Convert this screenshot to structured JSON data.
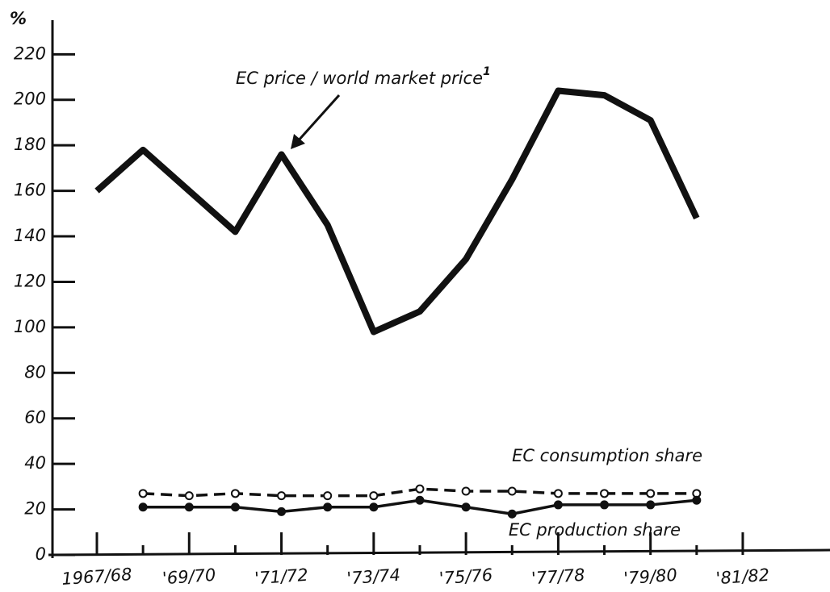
{
  "chart_data": {
    "type": "line",
    "y_label": "%",
    "footnote_marker": "1",
    "categories": [
      "1967/68",
      null,
      "'69/70",
      null,
      "'71/72",
      null,
      "'73/74",
      null,
      "'75/76",
      null,
      "'77/78",
      null,
      "'79/80",
      null,
      "'81/82"
    ],
    "series": [
      {
        "name": "EC price / world market price",
        "color": "#111111",
        "style": "solid-thick",
        "values": [
          160,
          178,
          160,
          142,
          176,
          145,
          98,
          107,
          130,
          165,
          204,
          202,
          191,
          148,
          null
        ]
      },
      {
        "name": "EC consumption share",
        "color": "#111111",
        "style": "dashed-open",
        "values": [
          null,
          27,
          26,
          27,
          26,
          26,
          26,
          29,
          28,
          28,
          27,
          27,
          27,
          27,
          null
        ]
      },
      {
        "name": "EC production share",
        "color": "#111111",
        "style": "solid-filled",
        "values": [
          null,
          21,
          21,
          21,
          19,
          21,
          21,
          24,
          21,
          18,
          22,
          22,
          22,
          24,
          null
        ]
      }
    ],
    "ylim": [
      0,
      235
    ],
    "yticks": [
      0,
      20,
      40,
      60,
      80,
      100,
      120,
      140,
      160,
      180,
      200,
      220
    ],
    "grid": false
  }
}
